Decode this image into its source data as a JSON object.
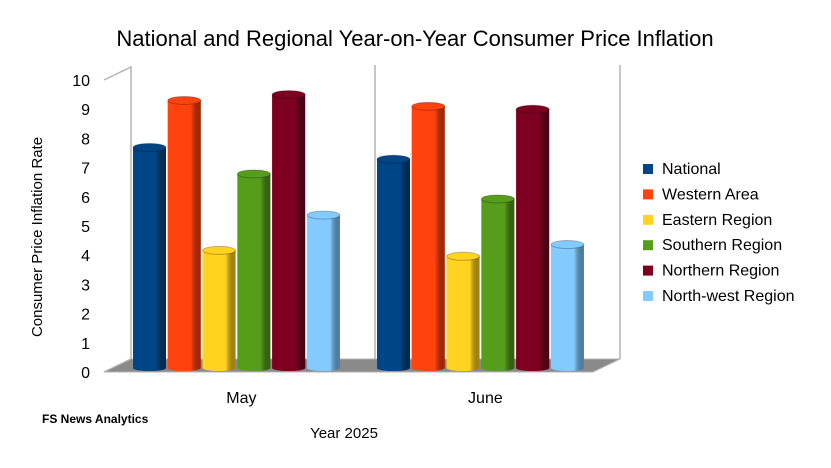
{
  "chart_data": {
    "type": "bar",
    "title": "National and Regional Year-on-Year Consumer Price Inflation",
    "xlabel": "Year 2025",
    "ylabel": "Consumer Price Inflation Rate",
    "ylim": [
      0,
      10
    ],
    "yticks": [
      "0",
      "1",
      "2",
      "3",
      "4",
      "5",
      "6",
      "7",
      "8",
      "9",
      "10"
    ],
    "categories": [
      "May",
      "June"
    ],
    "legend_position": "right",
    "grid": false,
    "style": "3d-cylinder",
    "series": [
      {
        "name": "National",
        "color": "#004586",
        "values": [
          7.5,
          7.1
        ]
      },
      {
        "name": "Western Area",
        "color": "#ff420e",
        "values": [
          9.1,
          8.9
        ]
      },
      {
        "name": "Eastern Region",
        "color": "#ffd320",
        "values": [
          4.0,
          3.8
        ]
      },
      {
        "name": "Southern Region",
        "color": "#579d1c",
        "values": [
          6.6,
          5.75
        ]
      },
      {
        "name": "Northern Region",
        "color": "#7e0021",
        "values": [
          9.3,
          8.8
        ]
      },
      {
        "name": "North-west Region",
        "color": "#83caff",
        "values": [
          5.2,
          4.2
        ]
      }
    ],
    "source_note": "FS News Analytics"
  }
}
